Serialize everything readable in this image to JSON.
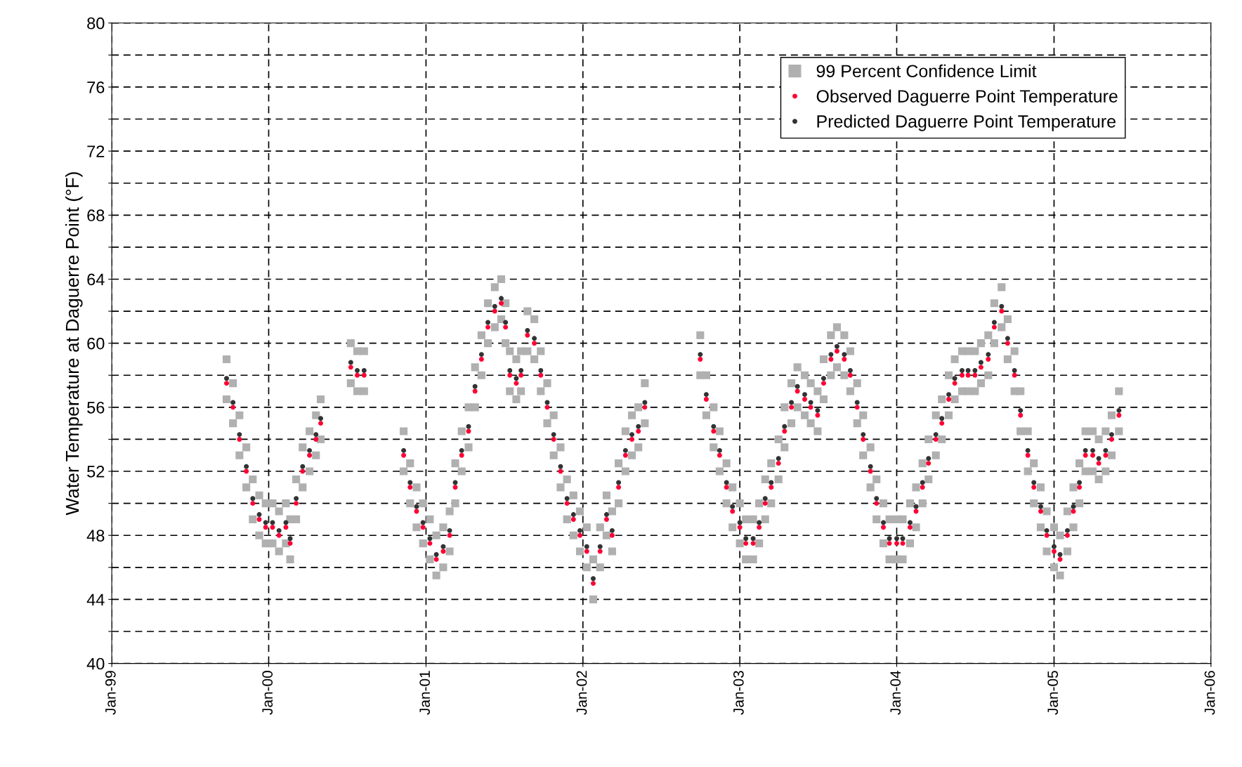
{
  "chart_data": {
    "type": "scatter",
    "ylabel": "Water Temperature at Daguerre Point (°F)",
    "x": [
      "1999-09-25",
      "1999-10-10",
      "1999-10-25",
      "1999-11-10",
      "1999-11-25",
      "1999-12-10",
      "1999-12-25",
      "2000-01-10",
      "2000-01-25",
      "2000-02-10",
      "2000-02-20",
      "2000-03-05",
      "2000-03-20",
      "2000-04-05",
      "2000-04-20",
      "2000-05-01",
      "2000-06-01",
      "2000-07-10",
      "2000-07-25",
      "2000-08-10",
      "2000-09-15",
      "2000-11-10",
      "2000-11-25",
      "2000-12-10",
      "2000-12-25",
      "2001-01-10",
      "2001-01-25",
      "2001-02-10",
      "2001-02-25",
      "2001-03-10",
      "2001-03-25",
      "2001-04-10",
      "2001-04-25",
      "2001-05-10",
      "2001-05-25",
      "2001-06-10",
      "2001-06-25",
      "2001-07-05",
      "2001-07-15",
      "2001-07-30",
      "2001-08-10",
      "2001-08-25",
      "2001-09-10",
      "2001-09-25",
      "2001-10-10",
      "2001-10-25",
      "2001-11-10",
      "2001-11-25",
      "2001-12-10",
      "2001-12-25",
      "2002-01-10",
      "2002-01-25",
      "2002-02-10",
      "2002-02-25",
      "2002-03-10",
      "2002-03-25",
      "2002-04-10",
      "2002-04-25",
      "2002-05-10",
      "2002-05-25",
      "2002-08-01",
      "2002-10-01",
      "2002-10-15",
      "2002-11-01",
      "2002-11-15",
      "2002-12-01",
      "2002-12-15",
      "2003-01-01",
      "2003-01-15",
      "2003-02-01",
      "2003-02-15",
      "2003-03-01",
      "2003-03-15",
      "2003-04-01",
      "2003-04-15",
      "2003-05-01",
      "2003-05-15",
      "2003-06-01",
      "2003-06-15",
      "2003-07-01",
      "2003-07-15",
      "2003-08-01",
      "2003-08-15",
      "2003-09-01",
      "2003-09-15",
      "2003-10-01",
      "2003-10-15",
      "2003-11-01",
      "2003-11-15",
      "2003-12-01",
      "2003-12-15",
      "2004-01-01",
      "2004-01-15",
      "2004-02-01",
      "2004-02-15",
      "2004-03-01",
      "2004-03-15",
      "2004-04-01",
      "2004-04-15",
      "2004-05-01",
      "2004-05-15",
      "2004-06-01",
      "2004-06-15",
      "2004-07-01",
      "2004-07-15",
      "2004-08-01",
      "2004-08-15",
      "2004-09-01",
      "2004-09-15",
      "2004-10-01",
      "2004-10-15",
      "2004-11-01",
      "2004-11-15",
      "2004-12-01",
      "2004-12-15",
      "2005-01-01",
      "2005-01-15",
      "2005-02-01",
      "2005-02-15",
      "2005-03-01",
      "2005-03-15",
      "2005-04-01",
      "2005-04-15",
      "2005-05-01",
      "2005-05-15",
      "2005-06-01"
    ],
    "series": [
      {
        "name": "99 Percent Confidence Limit",
        "color": "#b0b0b0",
        "marker": "square",
        "values": [
          56.5,
          55,
          53,
          51,
          49,
          48,
          47.5,
          47.5,
          47,
          47.5,
          46.5,
          49,
          51,
          52,
          53,
          54,
          null,
          57.5,
          57,
          57,
          null,
          52,
          50,
          48.5,
          47.5,
          46.5,
          45.5,
          46,
          47,
          50,
          52,
          53.5,
          56,
          58,
          60,
          61,
          61.5,
          60,
          57,
          56.5,
          57,
          59.5,
          59,
          57,
          55,
          53,
          51,
          49,
          48,
          47,
          46,
          44,
          46,
          48,
          47,
          50,
          52,
          53,
          53.5,
          55,
          null,
          58,
          55.5,
          53.5,
          52,
          50,
          48.5,
          47.5,
          46.5,
          46.5,
          47.5,
          49,
          50,
          51.5,
          53.5,
          55,
          56,
          55.5,
          55,
          54.5,
          56.5,
          58,
          58.5,
          58,
          57,
          55,
          53,
          51,
          49,
          47.5,
          46.5,
          46.5,
          46.5,
          47.5,
          48.5,
          50,
          51.5,
          53,
          54,
          55.5,
          56.5,
          57,
          57,
          57,
          57.5,
          58,
          60,
          61,
          59,
          57,
          54.5,
          52,
          50,
          48.5,
          47,
          46,
          45.5,
          47,
          48.5,
          50,
          52,
          52,
          51.5,
          52,
          53,
          54.5
        ]
      },
      {
        "color": "#b0b0b0",
        "marker": "square",
        "values": [
          59,
          57.5,
          55.5,
          53.5,
          51.5,
          50.5,
          50,
          50,
          49.5,
          50,
          49,
          51.5,
          53.5,
          54.5,
          55.5,
          56.5,
          null,
          60,
          59.5,
          59.5,
          null,
          54.5,
          52.5,
          51,
          50,
          49,
          48,
          48.5,
          49.5,
          52.5,
          54.5,
          56,
          58.5,
          60.5,
          62.5,
          63.5,
          64,
          62.5,
          59.5,
          59,
          59.5,
          62,
          61.5,
          59.5,
          57.5,
          55.5,
          53.5,
          51.5,
          50.5,
          49.5,
          48.5,
          46.5,
          48.5,
          50.5,
          49.5,
          52.5,
          54.5,
          55.5,
          56,
          57.5,
          null,
          60.5,
          58,
          56,
          54.5,
          52.5,
          51,
          50,
          49,
          49,
          50,
          51.5,
          52.5,
          54,
          56,
          57.5,
          58.5,
          58,
          57.5,
          57,
          59,
          60.5,
          61,
          60.5,
          59.5,
          57.5,
          55.5,
          53.5,
          51.5,
          50,
          49,
          49,
          49,
          50,
          51,
          52.5,
          54,
          55.5,
          56.5,
          58,
          59,
          59.5,
          59.5,
          59.5,
          60,
          60.5,
          62.5,
          63.5,
          61.5,
          59.5,
          57,
          54.5,
          52.5,
          51,
          49.5,
          48.5,
          48,
          49.5,
          51,
          52.5,
          54.5,
          54.5,
          54,
          54.5,
          55.5,
          57
        ]
      },
      {
        "name": "Observed Daguerre Point Temperature",
        "color": "#ff0033",
        "values": [
          57.5,
          56,
          54,
          52,
          50,
          49,
          48.5,
          48.5,
          48,
          48.5,
          47.5,
          50,
          52,
          53,
          54,
          55,
          null,
          58.5,
          58,
          58,
          null,
          53,
          51,
          49.5,
          48.5,
          47.5,
          46.5,
          47,
          48,
          51,
          53,
          54.5,
          57,
          59,
          61,
          62,
          62.5,
          61,
          58,
          57.5,
          58,
          60.5,
          60,
          58,
          56,
          54,
          52,
          50,
          49,
          48,
          47,
          45,
          47,
          49,
          48,
          51,
          53,
          54,
          54.5,
          56,
          null,
          59,
          56.5,
          54.5,
          53,
          51,
          49.5,
          48.5,
          47.5,
          47.5,
          48.5,
          50,
          51,
          52.5,
          54.5,
          56,
          57,
          56.5,
          56,
          55.5,
          57.5,
          59,
          59.5,
          59,
          58,
          56,
          54,
          52,
          50,
          48.5,
          47.5,
          47.5,
          47.5,
          48.5,
          49.5,
          51,
          52.5,
          54,
          55,
          56.5,
          57.5,
          58,
          58,
          58,
          58.5,
          59,
          61,
          62,
          60,
          58,
          55.5,
          53,
          51,
          49.5,
          48,
          47,
          46.5,
          48,
          49.5,
          51,
          53,
          53,
          52.5,
          53,
          54,
          55.5
        ]
      },
      {
        "name": "Predicted Daguerre Point Temperature",
        "color": "#333333",
        "values": [
          57.8,
          56.3,
          54.3,
          52.3,
          50.3,
          49.3,
          48.8,
          48.8,
          48.3,
          48.8,
          47.8,
          50.3,
          52.3,
          53.3,
          54.3,
          55.3,
          null,
          58.8,
          58.3,
          58.3,
          null,
          53.3,
          51.3,
          49.8,
          48.8,
          47.8,
          46.8,
          47.3,
          48.3,
          51.3,
          53.3,
          54.8,
          57.3,
          59.3,
          61.3,
          62.3,
          62.8,
          61.3,
          58.3,
          57.8,
          58.3,
          60.8,
          60.3,
          58.3,
          56.3,
          54.3,
          52.3,
          50.3,
          49.3,
          48.3,
          47.3,
          45.3,
          47.3,
          49.3,
          48.3,
          51.3,
          53.3,
          54.3,
          54.8,
          56.3,
          null,
          59.3,
          56.8,
          54.8,
          53.3,
          51.3,
          49.8,
          48.8,
          47.8,
          47.8,
          48.8,
          50.3,
          51.3,
          52.8,
          54.8,
          56.3,
          57.3,
          56.8,
          56.3,
          55.8,
          57.8,
          59.3,
          59.8,
          59.3,
          58.3,
          56.3,
          54.3,
          52.3,
          50.3,
          48.8,
          47.8,
          47.8,
          47.8,
          48.8,
          49.8,
          51.3,
          52.8,
          54.3,
          55.3,
          56.8,
          57.8,
          58.3,
          58.3,
          58.3,
          58.8,
          59.3,
          61.3,
          62.3,
          60.3,
          58.3,
          55.8,
          53.3,
          51.3,
          49.8,
          48.3,
          47.3,
          46.8,
          48.3,
          49.8,
          51.3,
          53.3,
          53.3,
          52.8,
          53.3,
          54.3,
          55.8
        ]
      }
    ],
    "xlim": [
      "1999-01",
      "2006-01"
    ],
    "xticks": [
      {
        "value": "1999-01",
        "label": "Jan-99"
      },
      {
        "value": "2000-01",
        "label": "Jan-00"
      },
      {
        "value": "2001-01",
        "label": "Jan-01"
      },
      {
        "value": "2002-01",
        "label": "Jan-02"
      },
      {
        "value": "2003-01",
        "label": "Jan-03"
      },
      {
        "value": "2004-01",
        "label": "Jan-04"
      },
      {
        "value": "2005-01",
        "label": "Jan-05"
      },
      {
        "value": "2006-01",
        "label": "Jan-06"
      }
    ],
    "ylim": [
      40,
      80
    ],
    "yticks": [
      40,
      {
        "value": 42,
        "label": null
      },
      44,
      {
        "value": 46,
        "label": null
      },
      48,
      {
        "value": 50,
        "label": null
      },
      52,
      {
        "value": 54,
        "label": null
      },
      56,
      {
        "value": 58,
        "label": null
      },
      60,
      {
        "value": 62,
        "label": null
      },
      64,
      {
        "value": 66,
        "label": null
      },
      68,
      {
        "value": 70,
        "label": null
      },
      72,
      {
        "value": 74,
        "label": null
      },
      76,
      {
        "value": 78,
        "label": null
      },
      80
    ],
    "grid": true,
    "legend": "top right",
    "marker": "circle"
  }
}
